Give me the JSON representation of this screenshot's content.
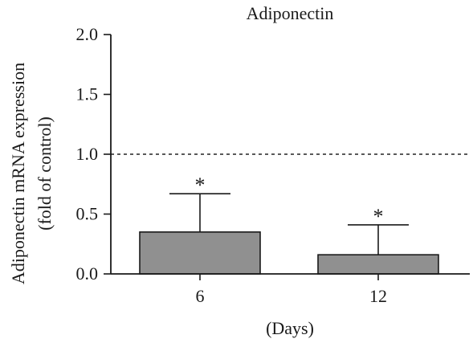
{
  "chart_data": {
    "type": "bar",
    "title": "Adiponectin",
    "ylabel_line1": "Adiponectin mRNA expression",
    "ylabel_line2": "(fold of control)",
    "xlabel": "(Days)",
    "categories": [
      "6",
      "12"
    ],
    "values": [
      0.35,
      0.16
    ],
    "error_upper": [
      0.67,
      0.41
    ],
    "significance": [
      "*",
      "*"
    ],
    "reference_line": 1.0,
    "ylim": [
      0,
      2.0
    ],
    "yticks": [
      0.0,
      0.5,
      1.0,
      1.5,
      2.0
    ],
    "ytick_labels": [
      "0.0",
      "0.5",
      "1.0",
      "1.5",
      "2.0"
    ],
    "bar_color": "#909090",
    "grid": false
  }
}
